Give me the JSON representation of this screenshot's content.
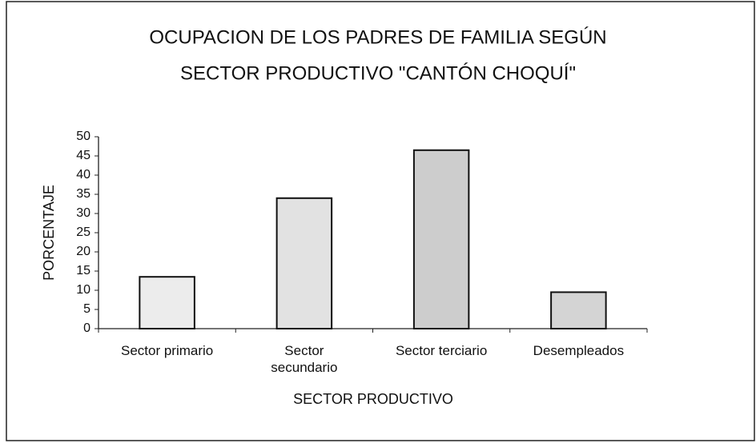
{
  "chart_data": {
    "type": "bar",
    "title": [
      "OCUPACION  DE LOS PADRES DE FAMILIA SEGÚN",
      "SECTOR PRODUCTIVO \"CANTÓN CHOQUÍ\""
    ],
    "categories": [
      "Sector primario",
      "Sector secundario",
      "Sector terciario",
      "Desempleados"
    ],
    "values": [
      13.5,
      34,
      46.5,
      9.5
    ],
    "colors": [
      "#ececec",
      "#e2e2e2",
      "#cdcdcd",
      "#d4d4d4"
    ],
    "ylabel": "PORCENTAJE",
    "xlabel": "SECTOR PRODUCTIVO",
    "ylim": [
      0,
      50
    ],
    "yticks": [
      0,
      5,
      10,
      15,
      20,
      25,
      30,
      35,
      40,
      45,
      50
    ],
    "grid": false
  }
}
